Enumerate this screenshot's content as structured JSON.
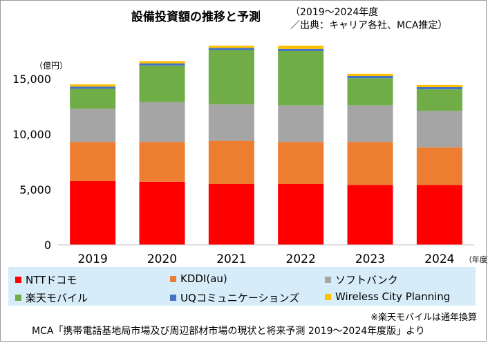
{
  "chart_data": {
    "type": "bar",
    "stacked": true,
    "title": "設備投資額の推移と予測",
    "subtitle_line1": "（2019～2024年度",
    "subtitle_line2": "／出典：キャリア各社、MCA推定）",
    "ylabel": "（億円）",
    "xunit": "（年度）",
    "ylim": [
      0,
      18000
    ],
    "yticks": [
      0,
      5000,
      10000,
      15000
    ],
    "ytick_labels": [
      "0",
      "5,000",
      "10,000",
      "15,000"
    ],
    "categories": [
      "2019",
      "2020",
      "2021",
      "2022",
      "2023",
      "2024"
    ],
    "series": [
      {
        "name": "NTTドコモ",
        "color": "#ff0000",
        "values": [
          5750,
          5700,
          5500,
          5500,
          5400,
          5400
        ]
      },
      {
        "name": "KDDI(au)",
        "color": "#ed7d31",
        "values": [
          3550,
          3600,
          3900,
          3800,
          3900,
          3400
        ]
      },
      {
        "name": "ソフトバンク",
        "color": "#a5a5a5",
        "values": [
          3000,
          3600,
          3300,
          3300,
          3300,
          3300
        ]
      },
      {
        "name": "楽天モバイル",
        "color": "#70ad47",
        "values": [
          1800,
          3300,
          4900,
          4900,
          2450,
          1950
        ]
      },
      {
        "name": "UQコミュニケーションズ",
        "color": "#4472c4",
        "values": [
          200,
          200,
          200,
          200,
          200,
          200
        ]
      },
      {
        "name": "Wireless City Planning",
        "color": "#ffc000",
        "values": [
          200,
          200,
          200,
          300,
          200,
          200
        ]
      }
    ],
    "gridlines": false,
    "legend_position": "bottom"
  },
  "note": "※楽天モバイルは通年換算",
  "source": "MCA「携帯電話基地局市場及び周辺部材市場の現状と将来予測 2019～2024年度版」より"
}
